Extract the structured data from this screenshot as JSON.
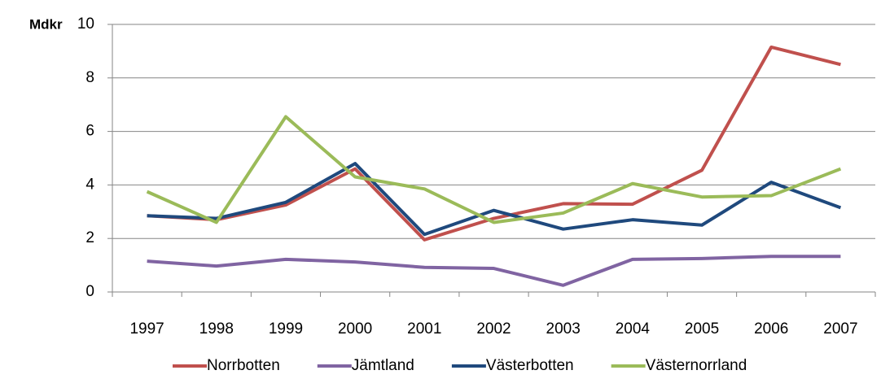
{
  "chart_data": {
    "type": "line",
    "y_label": "Mdkr",
    "categories": [
      "1997",
      "1998",
      "1999",
      "2000",
      "2001",
      "2002",
      "2003",
      "2004",
      "2005",
      "2006",
      "2007"
    ],
    "series": [
      {
        "name": "Norrbotten",
        "color": "#c0504d",
        "values": [
          2.85,
          2.7,
          3.25,
          4.6,
          1.95,
          2.75,
          3.3,
          3.28,
          4.55,
          9.15,
          8.5
        ]
      },
      {
        "name": "Jämtland",
        "color": "#8064a2",
        "values": [
          1.15,
          0.97,
          1.22,
          1.12,
          0.92,
          0.88,
          0.25,
          1.22,
          1.25,
          1.33,
          1.33
        ]
      },
      {
        "name": "Västerbotten",
        "color": "#1f497d",
        "values": [
          2.85,
          2.75,
          3.35,
          4.8,
          2.15,
          3.05,
          2.35,
          2.7,
          2.5,
          4.1,
          3.15
        ]
      },
      {
        "name": "Västernorrland",
        "color": "#9bbb59",
        "values": [
          3.75,
          2.6,
          6.55,
          4.3,
          3.85,
          2.6,
          2.95,
          4.05,
          3.55,
          3.6,
          4.6
        ]
      }
    ],
    "ylim": [
      0,
      10
    ],
    "yticks": [
      0,
      2,
      4,
      6,
      8,
      10
    ],
    "grid": true,
    "legend": "bottom"
  }
}
